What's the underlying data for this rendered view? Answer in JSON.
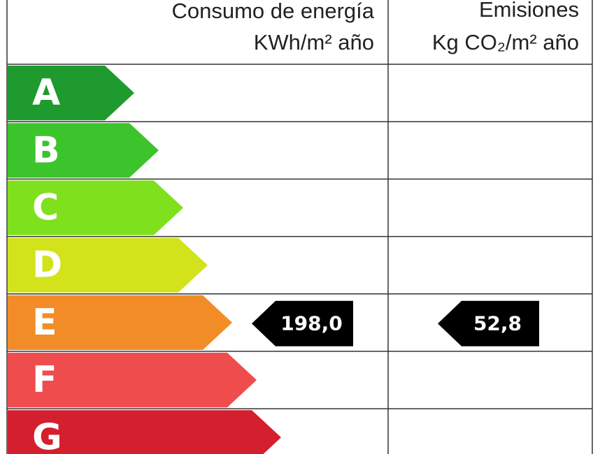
{
  "header": {
    "energy_title": "Consumo de energía",
    "energy_unit": "KWh/m² año",
    "emission_title": "Emisiones",
    "emission_unit": "Kg CO₂/m² año"
  },
  "rows": [
    {
      "letter": "A",
      "color": "#1f9a2e"
    },
    {
      "letter": "B",
      "color": "#3cc42c"
    },
    {
      "letter": "C",
      "color": "#7fe01e"
    },
    {
      "letter": "D",
      "color": "#d2e31c"
    },
    {
      "letter": "E",
      "color": "#f28c28"
    },
    {
      "letter": "F",
      "color": "#ef4d4d"
    },
    {
      "letter": "G",
      "color": "#d31f2e"
    }
  ],
  "energy": {
    "rating": "E",
    "value": "198,0"
  },
  "emission": {
    "rating": "E",
    "value": "52,8"
  }
}
